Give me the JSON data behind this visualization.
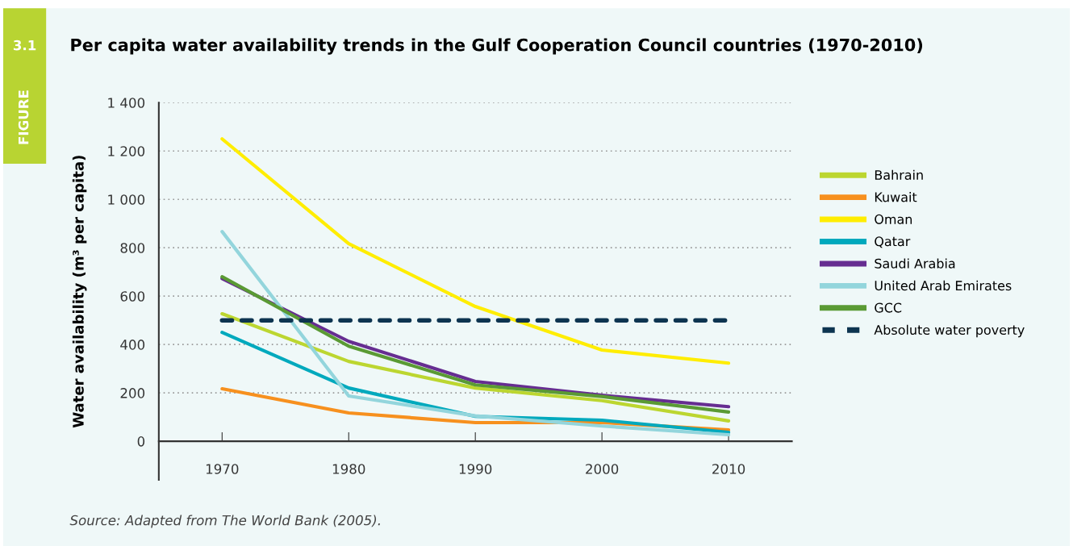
{
  "chart_data": {
    "type": "line",
    "title": "Per capita water availability trends in the Gulf Cooperation Council countries (1970-2010)",
    "ylabel": "Water availability (m³ per capita)",
    "annotations": [
      "3.1",
      "FIGURE",
      "Source: Adapted from The World Bank (2005)."
    ],
    "x": [
      1970,
      1980,
      1990,
      2000,
      2010
    ],
    "xlim": [
      1965,
      2015
    ],
    "xticks": [
      1970,
      1980,
      1990,
      2000,
      2010
    ],
    "ylim": [
      -160,
      1400
    ],
    "yticks": [
      0,
      200,
      400,
      600,
      800,
      {
        "value": 1000,
        "label": "1 000"
      },
      {
        "value": 1200,
        "label": "1 200"
      },
      {
        "value": 1400,
        "label": "1 400"
      }
    ],
    "grid": "y",
    "legend": "right",
    "marker": "none",
    "series": [
      {
        "name": "Bahrain",
        "color": "#bcd630",
        "values": [
          527,
          330,
          220,
          168,
          84
        ]
      },
      {
        "name": "Kuwait",
        "color": "#f7901e",
        "values": [
          217,
          117,
          77,
          77,
          47
        ]
      },
      {
        "name": "Oman",
        "color": "#ffed00",
        "values": [
          1250,
          817,
          557,
          377,
          323
        ]
      },
      {
        "name": "Qatar",
        "color": "#00a9bd",
        "values": [
          450,
          220,
          103,
          87,
          37
        ]
      },
      {
        "name": "Saudi Arabia",
        "color": "#662d91",
        "values": [
          673,
          413,
          247,
          190,
          143
        ]
      },
      {
        "name": "United Arab Emirates",
        "color": "#93d5dc",
        "values": [
          867,
          187,
          105,
          63,
          27
        ]
      },
      {
        "name": "GCC",
        "color": "#5a9a34",
        "values": [
          680,
          393,
          233,
          185,
          121
        ]
      },
      {
        "name": "Absolute water poverty",
        "color": "#0d3450",
        "line_style": "dashed",
        "values": [
          500,
          500,
          500,
          500,
          500
        ]
      }
    ]
  }
}
